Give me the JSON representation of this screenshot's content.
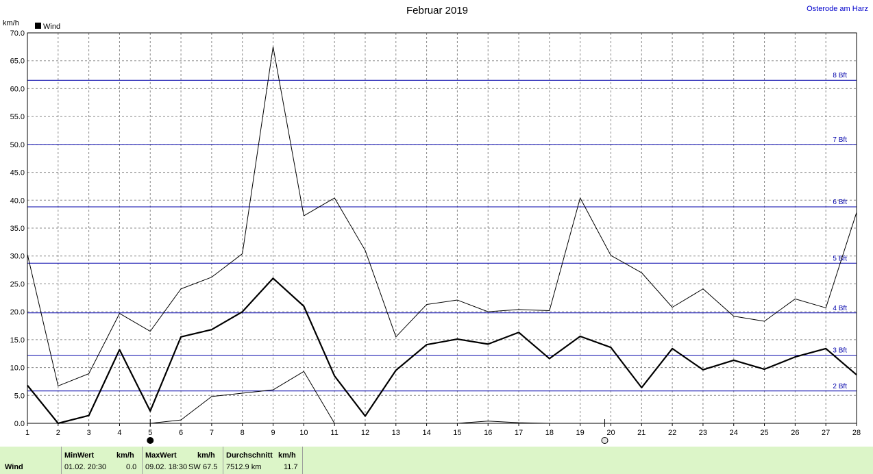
{
  "title": "Februar 2019",
  "site": "Osterode am Harz",
  "unit": "km/h",
  "legend_label": "Wind",
  "chart_data": {
    "type": "line",
    "title": "Februar 2019",
    "ylabel": "km/h",
    "ylim": [
      0,
      70
    ],
    "xlim": [
      1,
      28
    ],
    "grid": true,
    "legend": "top-left",
    "y_ticks": [
      "0.0",
      "5.0",
      "10.0",
      "15.0",
      "20.0",
      "25.0",
      "30.0",
      "35.0",
      "40.0",
      "45.0",
      "50.0",
      "55.0",
      "60.0",
      "65.0",
      "70.0"
    ],
    "x": [
      1,
      2,
      3,
      4,
      5,
      6,
      7,
      8,
      9,
      10,
      11,
      12,
      13,
      14,
      15,
      16,
      17,
      18,
      19,
      20,
      21,
      22,
      23,
      24,
      25,
      26,
      27,
      28
    ],
    "series": [
      {
        "name": "Wind",
        "role": "mean",
        "values": [
          6.8,
          0.0,
          1.4,
          13.2,
          2.2,
          15.5,
          16.8,
          20.0,
          26.0,
          21.0,
          8.5,
          1.3,
          9.5,
          14.1,
          15.1,
          14.2,
          16.3,
          11.6,
          15.6,
          13.6,
          6.4,
          13.4,
          9.6,
          11.3,
          9.7,
          11.9,
          13.4,
          8.7
        ]
      },
      {
        "role": "max",
        "values": [
          30.3,
          6.7,
          8.9,
          19.7,
          16.5,
          24.1,
          26.2,
          30.4,
          67.5,
          37.2,
          40.4,
          31.0,
          15.5,
          21.3,
          22.1,
          20.0,
          20.4,
          20.2,
          40.4,
          30.1,
          27.0,
          20.8,
          24.1,
          19.2,
          18.3,
          22.3,
          20.7,
          37.8
        ]
      },
      {
        "role": "min",
        "points": [
          [
            5,
            0.0
          ],
          [
            6,
            0.6
          ],
          [
            7,
            4.8
          ],
          [
            8,
            5.4
          ],
          [
            9,
            6.0
          ],
          [
            10,
            9.3
          ],
          [
            11,
            0.0
          ],
          [
            15,
            0.0
          ],
          [
            16,
            0.4
          ],
          [
            17,
            0.1
          ],
          [
            18,
            0.0
          ]
        ]
      }
    ],
    "beaufort_lines": [
      {
        "label": "2 Bft",
        "value": 5.8
      },
      {
        "label": "3 Bft",
        "value": 12.2
      },
      {
        "label": "4 Bft",
        "value": 19.8
      },
      {
        "label": "5 Bft",
        "value": 28.7
      },
      {
        "label": "6 Bft",
        "value": 38.8
      },
      {
        "label": "7 Bft",
        "value": 50.0
      },
      {
        "label": "8 Bft",
        "value": 61.5
      }
    ],
    "moon_phases": [
      {
        "day": 5,
        "phase": "new-moon"
      },
      {
        "day": 19.8,
        "phase": "full-moon"
      }
    ],
    "colors": {
      "series": "#000000",
      "beaufort": "#0000aa",
      "grid": "#888888",
      "footer": "#dcf5c8"
    }
  },
  "footer": {
    "row_label": "Wind",
    "min": {
      "label": "MinWert",
      "unit": "km/h",
      "when": "01.02.  20:30",
      "value": "0.0"
    },
    "max": {
      "label": "MaxWert",
      "unit": "km/h",
      "when": "09.02.  18:30",
      "dir": "SW",
      "value": "67.5"
    },
    "avg": {
      "label": "Durchschnitt",
      "unit": "km/h",
      "distance": "7512.9 km",
      "value": "11.7"
    }
  }
}
